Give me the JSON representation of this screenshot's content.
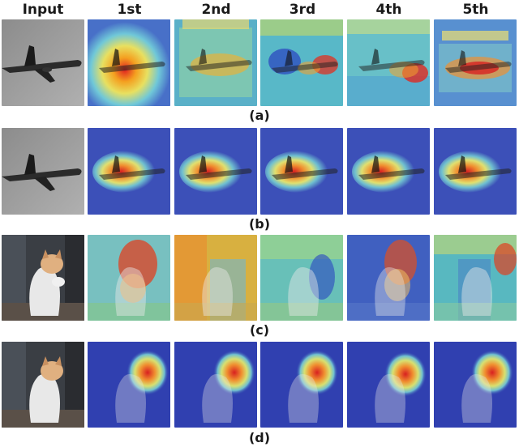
{
  "figure": {
    "column_titles": [
      "Input",
      "1st",
      "2nd",
      "3rd",
      "4th",
      "5th"
    ],
    "rows": [
      {
        "caption": "(a)",
        "subject": "airplane"
      },
      {
        "caption": "(b)",
        "subject": "airplane"
      },
      {
        "caption": "(c)",
        "subject": "cat"
      },
      {
        "caption": "(d)",
        "subject": "cat"
      }
    ]
  }
}
